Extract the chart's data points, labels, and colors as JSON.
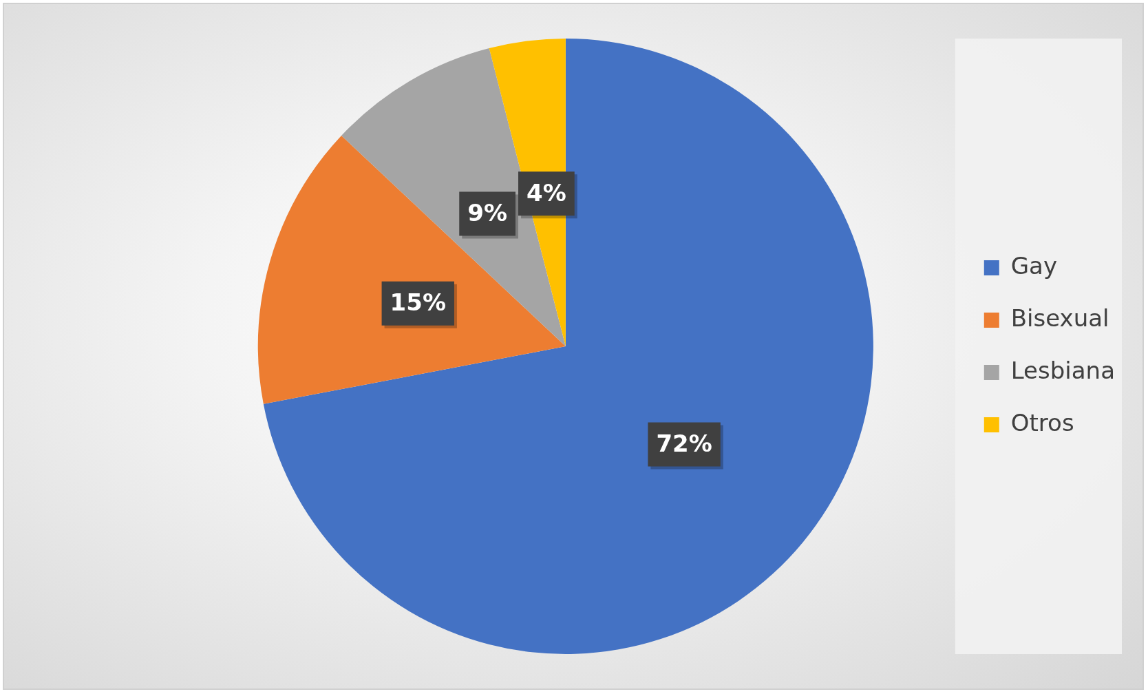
{
  "chart_data": {
    "type": "pie",
    "categories": [
      "Gay",
      "Bisexual",
      "Lesbiana",
      "Otros"
    ],
    "values": [
      72,
      15,
      9,
      4
    ],
    "colors": [
      "#4472c4",
      "#ed7d31",
      "#a5a5a5",
      "#ffc000"
    ],
    "value_labels": [
      "72%",
      "15%",
      "9%",
      "4%"
    ],
    "legend": "right"
  }
}
